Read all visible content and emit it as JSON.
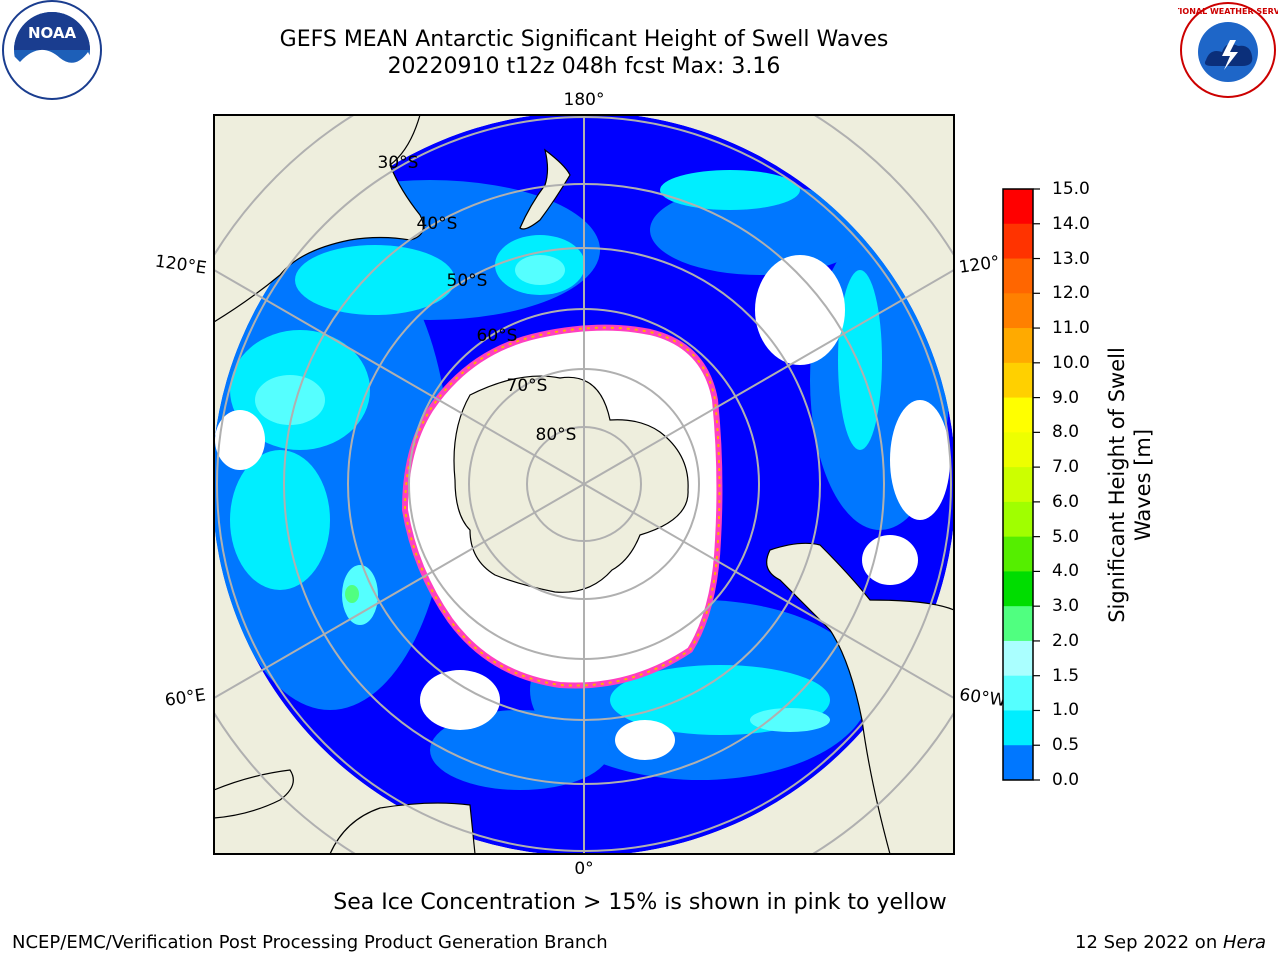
{
  "title": {
    "line1": "GEFS MEAN Antarctic Significant Height of Swell Waves",
    "line2": "20220910 t12z 048h fcst   Max: 3.16"
  },
  "logos": {
    "noaa": {
      "icon": "noaa-logo",
      "text": "NOAA"
    },
    "nws": {
      "icon": "nws-logo",
      "text": "NATIONAL WEATHER SERVICE"
    }
  },
  "map": {
    "projection": "south-polar-stereographic",
    "longitude_labels": {
      "top": "180°",
      "bottom": "0°",
      "upper_left": "120°E",
      "upper_right": "120°",
      "lower_left": "60°E",
      "lower_right": "60°W"
    },
    "latitude_labels": [
      "30°S",
      "40°S",
      "50°S",
      "60°S",
      "70°S",
      "80°S"
    ]
  },
  "colorbar": {
    "label": "Significant Height of Swell Waves [m]",
    "label_line1": "Significant Height of Swell",
    "label_line2": "Waves [m]",
    "ticks": [
      "15.0",
      "14.0",
      "13.0",
      "12.0",
      "11.0",
      "10.0",
      "9.0",
      "8.0",
      "7.0",
      "6.0",
      "5.0",
      "4.0",
      "3.0",
      "2.0",
      "1.5",
      "1.0",
      "0.5",
      "0.0"
    ],
    "colors": [
      "#ff0000",
      "#ff3300",
      "#ff6600",
      "#ff8000",
      "#ffaa00",
      "#ffd000",
      "#ffff00",
      "#eeff00",
      "#ccff00",
      "#a0ff00",
      "#55ee00",
      "#00dd00",
      "#50ff80",
      "#aaffff",
      "#55ffff",
      "#00eeff",
      "#0077ff",
      "#0000ff"
    ]
  },
  "legend_note": "Sea Ice Concentration > 15% is shown in pink to yellow",
  "footer": {
    "left": "NCEP/EMC/Verification Post Processing Product Generation Branch",
    "right_prefix": "12 Sep 2022 on ",
    "right_host": "Hera"
  }
}
